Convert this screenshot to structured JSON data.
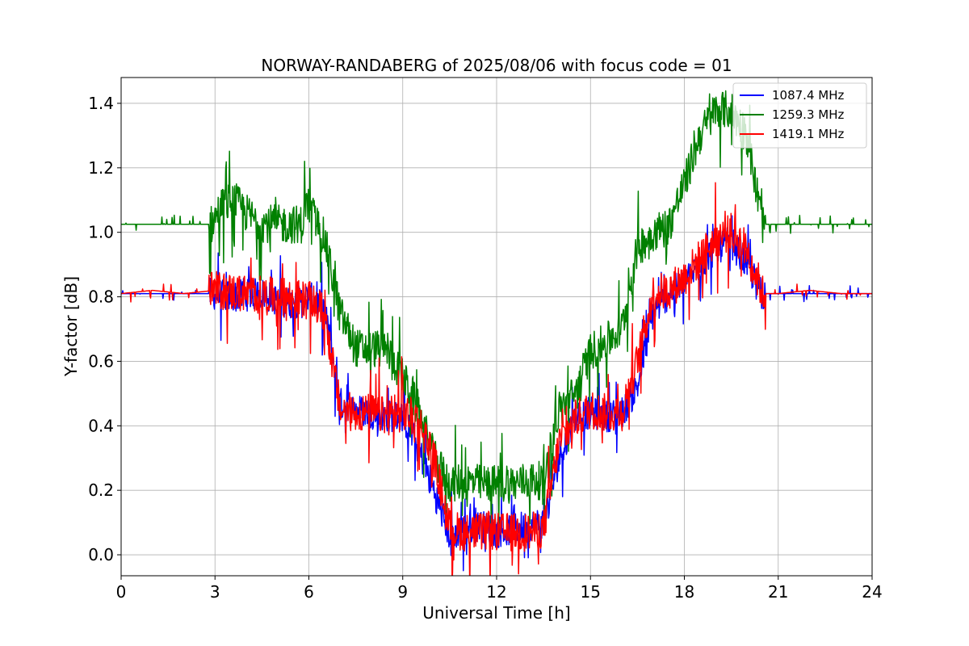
{
  "chart_data": {
    "type": "line",
    "title": "NORWAY-RANDABERG of 2025/08/06 with focus code = 01",
    "xlabel": "Universal Time [h]",
    "ylabel": "Y-factor [dB]",
    "xlim": [
      0,
      24
    ],
    "ylim": [
      -0.065,
      1.48
    ],
    "xticks": [
      0,
      3,
      6,
      9,
      12,
      15,
      18,
      21,
      24
    ],
    "yticks": [
      0.0,
      0.2,
      0.4,
      0.6,
      0.8,
      1.0,
      1.2,
      1.4
    ],
    "grid": true,
    "legend_position": "top-right",
    "series": [
      {
        "name": "1087.4 MHz",
        "color": "#0000ff",
        "x": [
          0,
          2.9,
          3.5,
          4.5,
          5.0,
          5.5,
          6.0,
          6.5,
          7.0,
          7.5,
          8.0,
          8.5,
          9.0,
          9.5,
          10.0,
          10.5,
          11.0,
          11.5,
          12.0,
          12.5,
          13.0,
          13.5,
          14.0,
          14.5,
          15.0,
          15.5,
          16.0,
          16.5,
          17.0,
          17.5,
          18.0,
          18.5,
          19.0,
          19.5,
          20.0,
          20.5,
          21.0,
          22.0,
          23.0,
          24.0
        ],
        "values": [
          0.81,
          0.81,
          0.8,
          0.81,
          0.79,
          0.78,
          0.8,
          0.76,
          0.47,
          0.45,
          0.44,
          0.43,
          0.43,
          0.33,
          0.2,
          0.06,
          0.08,
          0.09,
          0.07,
          0.08,
          0.09,
          0.1,
          0.3,
          0.43,
          0.44,
          0.43,
          0.44,
          0.52,
          0.75,
          0.81,
          0.84,
          0.9,
          0.95,
          0.97,
          0.9,
          0.81,
          0.81,
          0.81,
          0.81,
          0.81
        ],
        "noise": 0.05
      },
      {
        "name": "1259.3 MHz",
        "color": "#008000",
        "x": [
          0,
          2.9,
          3.2,
          3.6,
          4.0,
          4.4,
          5.0,
          5.8,
          5.9,
          6.5,
          7.0,
          7.5,
          8.0,
          8.5,
          9.0,
          9.5,
          10.0,
          10.5,
          11.0,
          11.5,
          12.0,
          12.5,
          13.0,
          13.5,
          14.0,
          14.5,
          15.0,
          15.5,
          16.0,
          16.5,
          17.0,
          17.5,
          18.0,
          18.5,
          19.0,
          19.5,
          20.0,
          20.5,
          21.0,
          22.0,
          23.0,
          24.0
        ],
        "values": [
          1.025,
          1.025,
          1.08,
          1.1,
          1.06,
          1.03,
          1.025,
          1.025,
          1.1,
          0.98,
          0.75,
          0.64,
          0.64,
          0.64,
          0.55,
          0.45,
          0.3,
          0.22,
          0.23,
          0.22,
          0.22,
          0.22,
          0.23,
          0.23,
          0.45,
          0.5,
          0.63,
          0.66,
          0.7,
          0.95,
          1.0,
          1.02,
          1.15,
          1.3,
          1.38,
          1.38,
          1.3,
          1.025,
          1.025,
          1.025,
          1.025,
          1.025
        ],
        "noise": 0.06
      },
      {
        "name": "1419.1 MHz",
        "color": "#ff0000",
        "x": [
          0,
          1.0,
          2.0,
          3.0,
          4.0,
          5.0,
          6.0,
          6.5,
          7.0,
          7.5,
          8.0,
          8.5,
          9.0,
          9.5,
          10.0,
          10.5,
          11.0,
          11.5,
          12.0,
          12.5,
          13.0,
          13.5,
          14.0,
          14.5,
          15.0,
          15.5,
          16.0,
          16.5,
          17.0,
          17.5,
          18.0,
          18.5,
          19.0,
          19.5,
          20.0,
          20.5,
          21.0,
          22.0,
          23.0,
          24.0
        ],
        "values": [
          0.81,
          0.82,
          0.81,
          0.82,
          0.81,
          0.8,
          0.79,
          0.75,
          0.45,
          0.44,
          0.44,
          0.43,
          0.44,
          0.42,
          0.3,
          0.08,
          0.07,
          0.07,
          0.07,
          0.07,
          0.07,
          0.08,
          0.35,
          0.42,
          0.45,
          0.44,
          0.44,
          0.6,
          0.81,
          0.82,
          0.86,
          0.92,
          0.98,
          1.0,
          0.95,
          0.81,
          0.81,
          0.82,
          0.81,
          0.81
        ],
        "noise": 0.06
      }
    ]
  }
}
